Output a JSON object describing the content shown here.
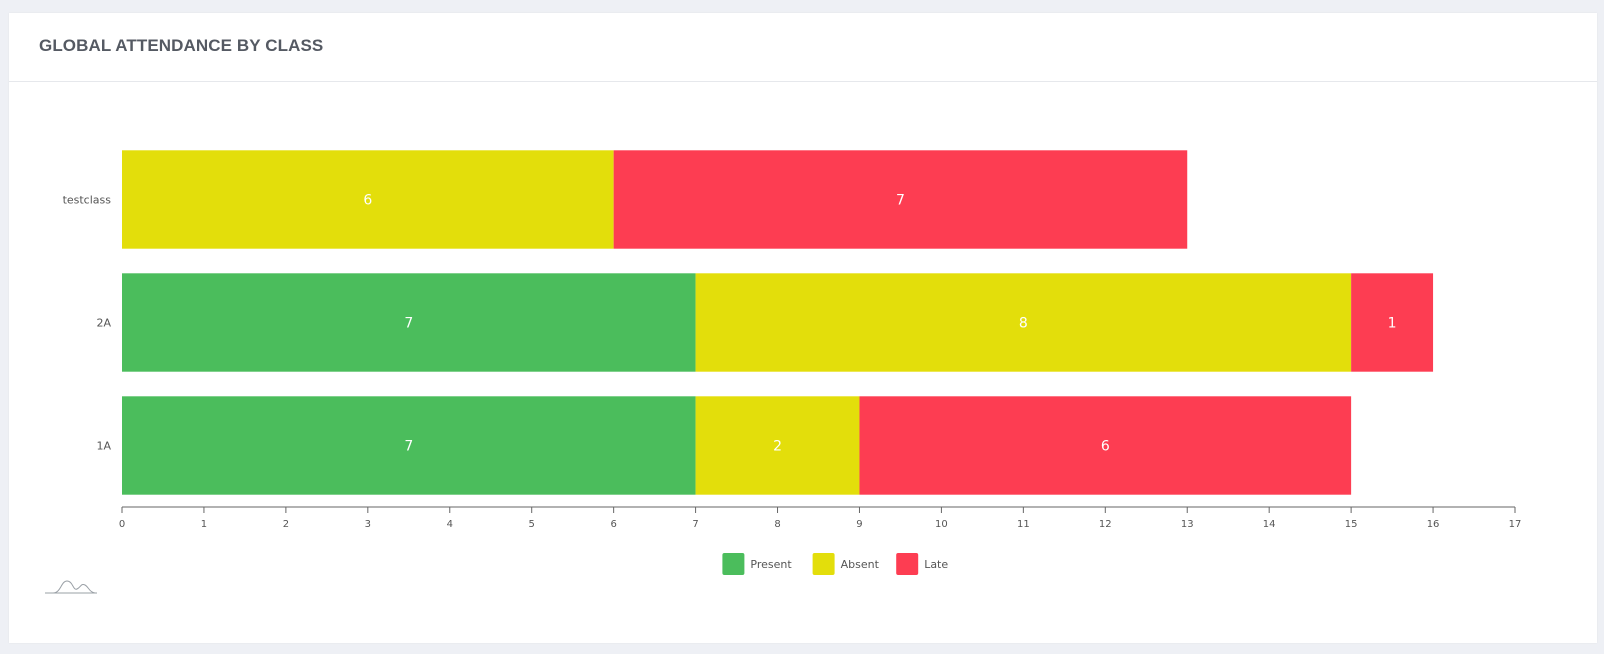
{
  "card": {
    "title": "GLOBAL ATTENDANCE BY CLASS"
  },
  "chart_data": {
    "type": "bar",
    "orientation": "horizontal",
    "stacked": true,
    "title": "GLOBAL ATTENDANCE BY CLASS",
    "categories": [
      "testclass",
      "2A",
      "1A"
    ],
    "series": [
      {
        "name": "Present",
        "color": "#4bbd5c",
        "values": [
          0,
          7,
          7
        ]
      },
      {
        "name": "Absent",
        "color": "#e3de0b",
        "values": [
          6,
          8,
          2
        ]
      },
      {
        "name": "Late",
        "color": "#fd3d52",
        "values": [
          7,
          1,
          6
        ]
      }
    ],
    "xlim": [
      0,
      17
    ],
    "x_ticks": [
      0,
      1,
      2,
      3,
      4,
      5,
      6,
      7,
      8,
      9,
      10,
      11,
      12,
      13,
      14,
      15,
      16,
      17
    ],
    "xlabel": "",
    "ylabel": "",
    "data_labels": true,
    "grid": false,
    "legend_position": "bottom-center",
    "icons": [
      "chart-logo-icon"
    ]
  }
}
